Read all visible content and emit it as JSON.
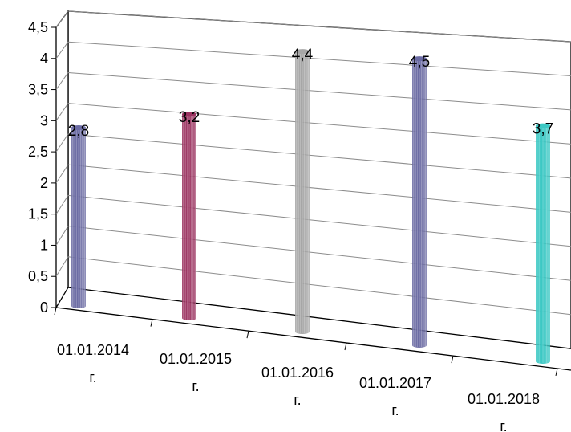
{
  "chart_data": {
    "type": "bar",
    "categories": [
      [
        "01.01.2014",
        "г."
      ],
      [
        "01.01.2015",
        "г."
      ],
      [
        "01.01.2016",
        "г."
      ],
      [
        "01.01.2017",
        "г."
      ],
      [
        "01.01.2018",
        "г."
      ]
    ],
    "values": [
      2.8,
      3.2,
      4.4,
      4.5,
      3.7
    ],
    "data_labels": [
      "2,8",
      "3,2",
      "4,4",
      "4,5",
      "3,7"
    ],
    "colors": [
      "#6b6ba3",
      "#9b3360",
      "#a6a6a6",
      "#6b6ba3",
      "#3cc8c4"
    ],
    "yticks": [
      "0",
      "0,5",
      "1",
      "1,5",
      "2",
      "2,5",
      "3",
      "3,5",
      "4",
      "4,5"
    ],
    "ylim": [
      0,
      4.5
    ],
    "grid": true,
    "legend": "none",
    "title": "",
    "xlabel": "",
    "ylabel": ""
  }
}
